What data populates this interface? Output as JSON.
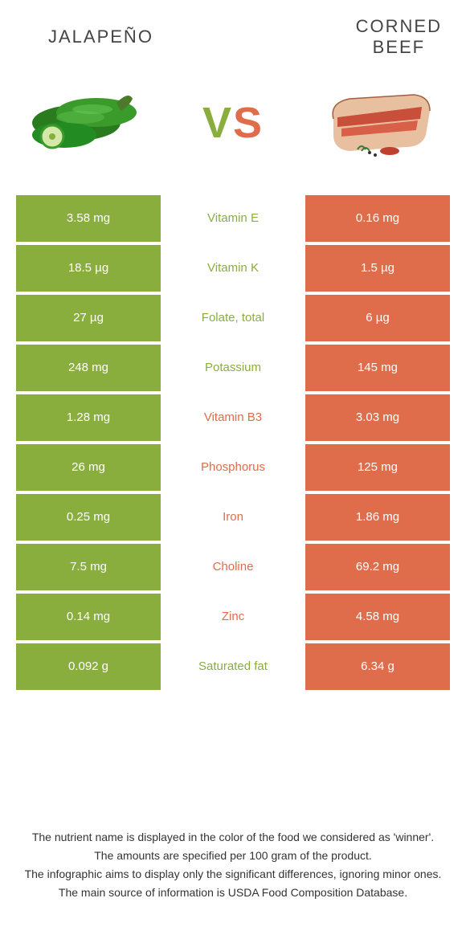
{
  "colors": {
    "left": "#8aae3e",
    "right": "#df6c4a",
    "text_dark": "#444444"
  },
  "header": {
    "left_title": "JALAPEÑO",
    "right_title": "CORNED\nBEEF",
    "vs_v": "V",
    "vs_s": "S"
  },
  "rows": [
    {
      "left": "3.58 mg",
      "label": "Vitamin E",
      "right": "0.16 mg",
      "winner": "left"
    },
    {
      "left": "18.5 µg",
      "label": "Vitamin K",
      "right": "1.5 µg",
      "winner": "left"
    },
    {
      "left": "27 µg",
      "label": "Folate, total",
      "right": "6 µg",
      "winner": "left"
    },
    {
      "left": "248 mg",
      "label": "Potassium",
      "right": "145 mg",
      "winner": "left"
    },
    {
      "left": "1.28 mg",
      "label": "Vitamin B3",
      "right": "3.03 mg",
      "winner": "right"
    },
    {
      "left": "26 mg",
      "label": "Phosphorus",
      "right": "125 mg",
      "winner": "right"
    },
    {
      "left": "0.25 mg",
      "label": "Iron",
      "right": "1.86 mg",
      "winner": "right"
    },
    {
      "left": "7.5 mg",
      "label": "Choline",
      "right": "69.2 mg",
      "winner": "right"
    },
    {
      "left": "0.14 mg",
      "label": "Zinc",
      "right": "4.58 mg",
      "winner": "right"
    },
    {
      "left": "0.092 g",
      "label": "Saturated fat",
      "right": "6.34 g",
      "winner": "left"
    }
  ],
  "footer": {
    "line1": "The nutrient name is displayed in the color of the food we considered as 'winner'.",
    "line2": "The amounts are specified per 100 gram of the product.",
    "line3": "The infographic aims to display only the significant differences, ignoring minor ones.",
    "line4": "The main source of information is USDA Food Composition Database."
  }
}
